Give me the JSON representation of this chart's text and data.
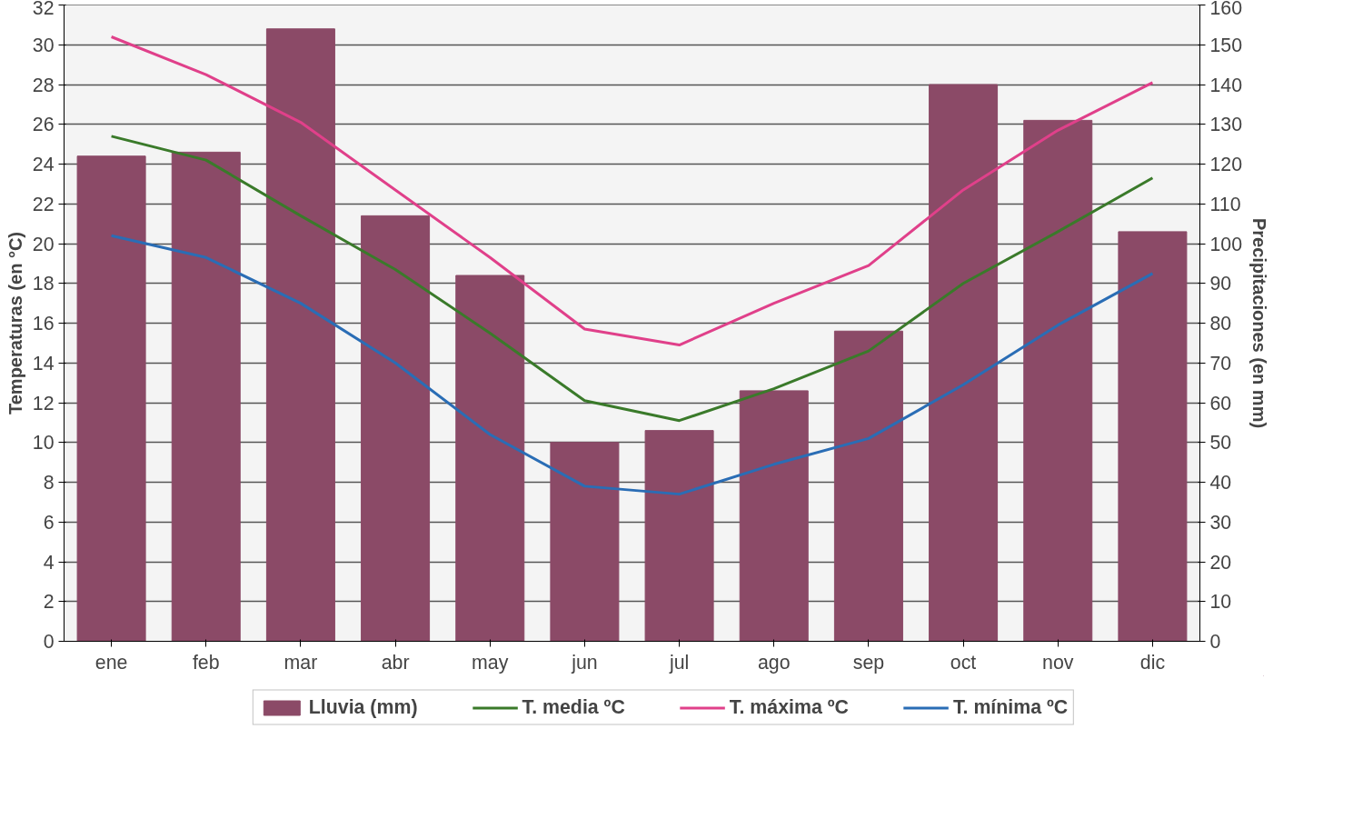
{
  "chart_data": {
    "type": "line",
    "categories": [
      "ene",
      "feb",
      "mar",
      "abr",
      "may",
      "jun",
      "jul",
      "ago",
      "sep",
      "oct",
      "nov",
      "dic"
    ],
    "ylabel": "Temperaturas (en °C)",
    "y2label": "Precipitaciones (en mm)",
    "ylim": [
      0,
      32
    ],
    "yticks": [
      0,
      2,
      4,
      6,
      8,
      10,
      12,
      14,
      16,
      18,
      20,
      22,
      24,
      26,
      28,
      30,
      32
    ],
    "y2lim": [
      0,
      160
    ],
    "y2ticks": [
      0,
      10,
      20,
      30,
      40,
      50,
      60,
      70,
      80,
      90,
      100,
      110,
      120,
      130,
      140,
      150,
      160
    ],
    "grid": "y",
    "legend": "bottom",
    "series": [
      {
        "name": "Lluvia (mm)",
        "type": "bar",
        "axis": "y2",
        "color": "#8b4a67",
        "values": [
          122,
          123,
          154,
          107,
          92,
          50,
          53,
          63,
          78,
          140,
          131,
          103
        ]
      },
      {
        "name": "T. media ºC",
        "color": "#3a7a2a",
        "values": [
          25.4,
          24.2,
          21.4,
          18.7,
          15.5,
          12.1,
          11.1,
          12.7,
          14.6,
          18.0,
          20.6,
          23.3
        ]
      },
      {
        "name": "T. máxima ºC",
        "color": "#e0408a",
        "values": [
          30.4,
          28.5,
          26.1,
          22.7,
          19.3,
          15.7,
          14.9,
          17.0,
          18.9,
          22.7,
          25.7,
          28.1
        ]
      },
      {
        "name": "T. mínima ºC",
        "color": "#2a6db5",
        "values": [
          20.4,
          19.3,
          17.0,
          14.0,
          10.4,
          7.8,
          7.4,
          8.9,
          10.2,
          12.9,
          15.9,
          18.5
        ]
      }
    ]
  }
}
